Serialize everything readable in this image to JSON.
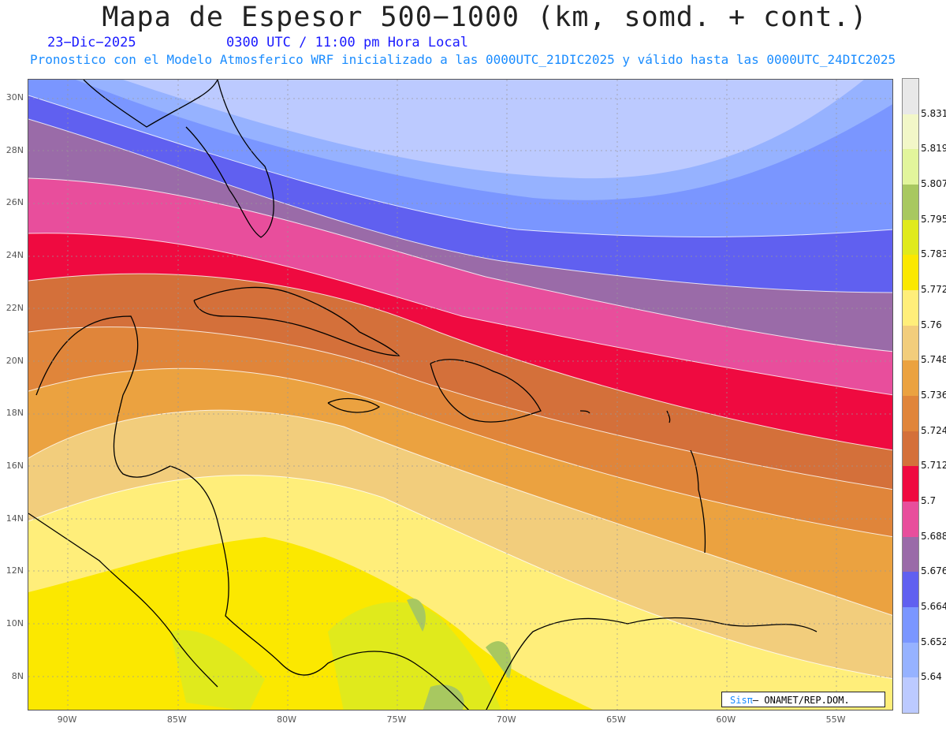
{
  "title": "Mapa de Espesor 500−1000 (km, somd. + cont.)",
  "date": "23−Dic−2025",
  "time": "0300 UTC / 11:00 pm Hora Local",
  "description": "Pronostico con el Modelo Atmosferico WRF inicializado a las 0000UTC_21DIC2025 y válido hasta las  0000UTC_24DIC2025",
  "lat_labels": [
    "30N",
    "28N",
    "26N",
    "24N",
    "22N",
    "20N",
    "18N",
    "16N",
    "14N",
    "12N",
    "10N",
    "8N"
  ],
  "lon_labels": [
    "90W",
    "85W",
    "80W",
    "75W",
    "70W",
    "65W",
    "60W",
    "55W"
  ],
  "legend": {
    "values": [
      "5.831",
      "5.819",
      "5.807",
      "5.795",
      "5.783",
      "5.772",
      "5.76",
      "5.748",
      "5.736",
      "5.724",
      "5.712",
      "5.7",
      "5.688",
      "5.676",
      "5.664",
      "5.652",
      "5.64"
    ],
    "colors": [
      "#e8e8e8",
      "#f2f7c8",
      "#e2f59c",
      "#a8c860",
      "#e0ea1c",
      "#fbe800",
      "#ffee7a",
      "#f2cd7c",
      "#eba240",
      "#e0853a",
      "#d4703a",
      "#ef0a40",
      "#e84e9c",
      "#9a6ba8",
      "#6060f0",
      "#7a96ff",
      "#96b2ff",
      "#bccaff"
    ]
  },
  "credit": {
    "brand": "Sisπ",
    "text": " ONAMET/REP.DOM."
  }
}
